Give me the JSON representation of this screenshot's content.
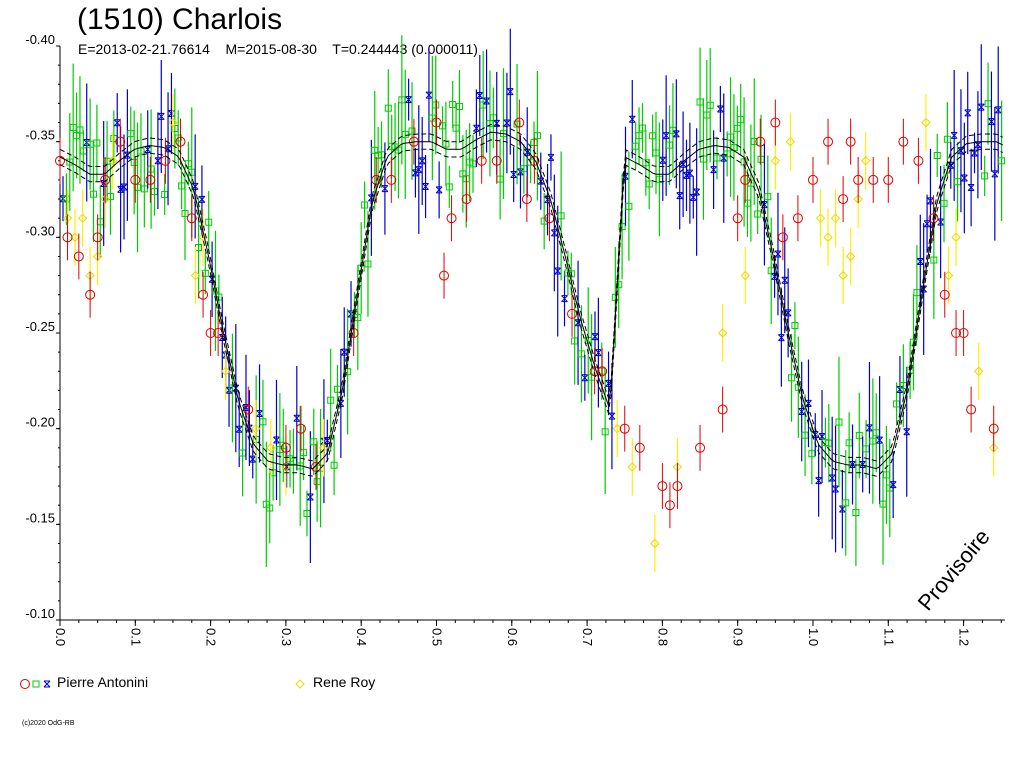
{
  "header": {
    "title": "(1510) Charlois",
    "subtitle": "E=2013-02-21.76614    M=2015-08-30    T=0.244443 (0.000011)"
  },
  "watermark": "Provisoire",
  "copyright": "(c)2020 OdG-RB",
  "legend": [
    {
      "label": "Pierre Antonini",
      "markers": [
        "circle-red",
        "square-green",
        "star-blue"
      ]
    },
    {
      "label": "Rene Roy",
      "markers": [
        "diamond-yellow"
      ]
    }
  ],
  "colors": {
    "red": "#e00000",
    "green": "#00cc00",
    "blue": "#0000cc",
    "yellow": "#ffee00",
    "curve": "#000000"
  },
  "chart_data": {
    "type": "scatter",
    "title": "(1510) Charlois",
    "xlim": [
      0,
      1.25
    ],
    "ylim": [
      -0.4,
      -0.1
    ],
    "x_ticks": [
      "0.0",
      "0.1",
      "0.2",
      "0.3",
      "0.4",
      "0.5",
      "0.6",
      "0.7",
      "0.8",
      "0.9",
      "1.0",
      "1.1",
      "1.2"
    ],
    "y_ticks": [
      "-0.40",
      "-0.35",
      "-0.30",
      "-0.25",
      "-0.20",
      "-0.15",
      "-0.10"
    ],
    "y_inverted": true,
    "fit_curve": {
      "period": 0.75,
      "x": [
        0.0,
        0.02,
        0.04,
        0.06,
        0.08,
        0.1,
        0.12,
        0.14,
        0.16,
        0.18,
        0.2,
        0.22,
        0.24,
        0.26,
        0.28,
        0.3,
        0.32,
        0.34,
        0.36,
        0.38,
        0.4,
        0.42,
        0.44,
        0.46,
        0.48,
        0.5,
        0.52,
        0.54,
        0.56,
        0.58,
        0.6,
        0.62,
        0.64,
        0.66,
        0.68,
        0.7,
        0.72,
        0.74
      ],
      "y": [
        -0.342,
        -0.338,
        -0.333,
        -0.333,
        -0.34,
        -0.346,
        -0.348,
        -0.347,
        -0.342,
        -0.325,
        -0.29,
        -0.25,
        -0.215,
        -0.192,
        -0.183,
        -0.181,
        -0.181,
        -0.179,
        -0.187,
        -0.22,
        -0.27,
        -0.318,
        -0.342,
        -0.349,
        -0.35,
        -0.35,
        -0.346,
        -0.346,
        -0.351,
        -0.355,
        -0.354,
        -0.35,
        -0.34,
        -0.32,
        -0.29,
        -0.258,
        -0.232,
        -0.21
      ],
      "band": 0.004
    },
    "series": [
      {
        "name": "Pierre Antonini",
        "x": [
          0.0,
          0.01,
          0.025,
          0.04,
          0.05,
          0.06,
          0.08,
          0.1,
          0.12,
          0.14,
          0.16,
          0.175,
          0.19,
          0.2,
          0.21,
          0.25,
          0.3,
          0.32,
          0.34,
          0.39,
          0.42,
          0.44,
          0.47,
          0.5,
          0.51,
          0.52,
          0.54,
          0.56,
          0.58,
          0.61,
          0.62,
          0.63,
          0.65,
          0.68,
          0.71,
          0.72,
          0.75,
          0.77,
          0.8,
          0.81,
          0.82,
          0.85,
          0.88,
          0.9,
          0.91,
          0.93,
          0.95,
          0.96,
          0.98,
          1.0,
          1.02,
          1.04,
          1.05,
          1.06,
          1.08,
          1.1,
          1.12,
          1.14,
          1.16,
          1.175,
          1.19,
          1.2,
          1.21,
          1.24
        ],
        "y": [
          -0.34,
          -0.3,
          -0.29,
          -0.27,
          -0.3,
          -0.33,
          -0.35,
          -0.33,
          -0.33,
          -0.34,
          -0.35,
          -0.31,
          -0.27,
          -0.25,
          -0.25,
          -0.21,
          -0.19,
          -0.2,
          -0.18,
          -0.25,
          -0.33,
          -0.33,
          -0.35,
          -0.36,
          -0.28,
          -0.31,
          -0.32,
          -0.34,
          -0.34,
          -0.36,
          -0.32,
          -0.34,
          -0.31,
          -0.26,
          -0.23,
          -0.23,
          -0.2,
          -0.19,
          -0.17,
          -0.16,
          -0.17,
          -0.19,
          -0.21,
          -0.31,
          -0.33,
          -0.35,
          -0.36,
          -0.3,
          -0.31,
          -0.33,
          -0.35,
          -0.32,
          -0.35,
          -0.33,
          -0.33,
          -0.33,
          -0.35,
          -0.34,
          -0.31,
          -0.27,
          -0.25,
          -0.25,
          -0.21,
          -0.2
        ]
      },
      {
        "name": "Rene Roy",
        "x": [
          0.01,
          0.02,
          0.03,
          0.04,
          0.05,
          0.06,
          0.07,
          0.15,
          0.18,
          0.19,
          0.22,
          0.26,
          0.28,
          0.3,
          0.35,
          0.74,
          0.76,
          0.79,
          0.82,
          0.88,
          0.91,
          0.95,
          0.97,
          1.01,
          1.02,
          1.03,
          1.04,
          1.05,
          1.06,
          1.07,
          1.15,
          1.18,
          1.19,
          1.22,
          1.24
        ],
        "y": [
          -0.31,
          -0.3,
          -0.31,
          -0.28,
          -0.29,
          -0.32,
          -0.34,
          -0.36,
          -0.28,
          -0.3,
          -0.23,
          -0.2,
          -0.19,
          -0.18,
          -0.19,
          -0.2,
          -0.18,
          -0.14,
          -0.18,
          -0.25,
          -0.28,
          -0.34,
          -0.35,
          -0.31,
          -0.3,
          -0.31,
          -0.28,
          -0.29,
          -0.32,
          -0.34,
          -0.36,
          -0.28,
          -0.3,
          -0.23,
          -0.19
        ]
      }
    ]
  }
}
